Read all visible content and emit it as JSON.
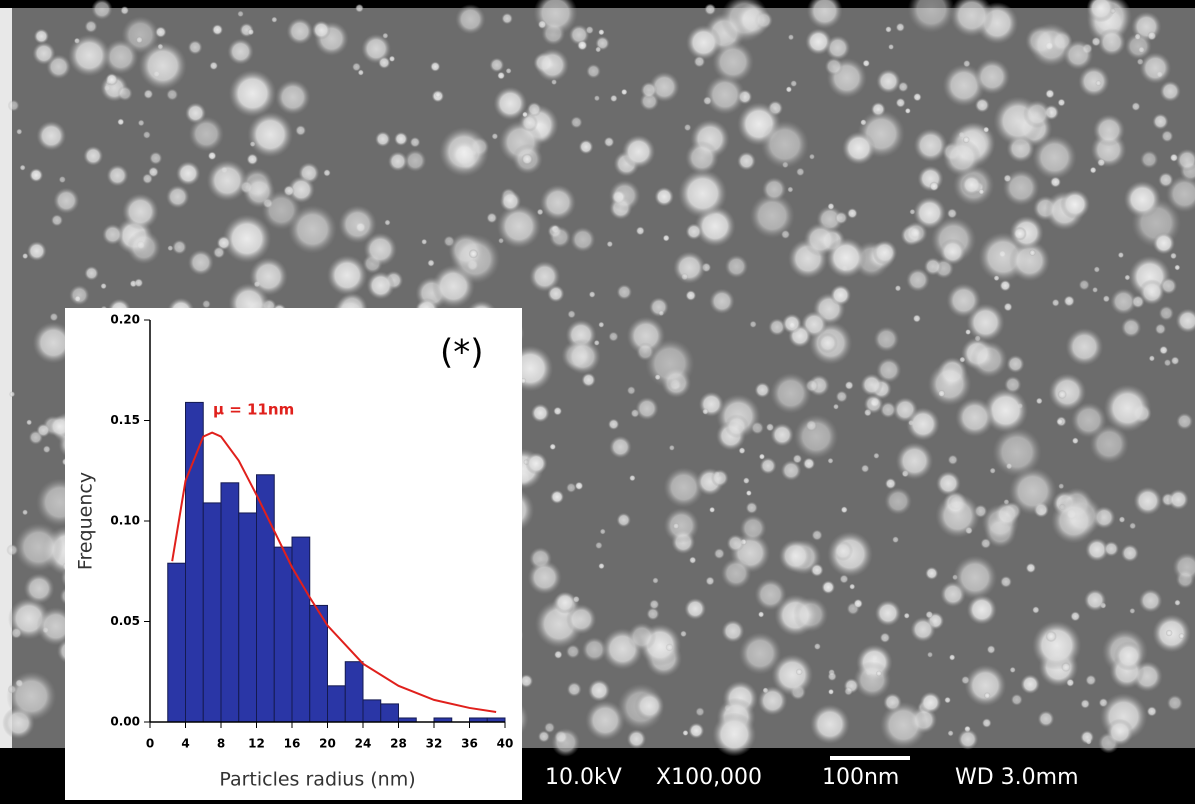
{
  "chart_data": {
    "type": "histogram",
    "bins": [
      2,
      4,
      6,
      8,
      10,
      12,
      14,
      16,
      18,
      20,
      22,
      24,
      26,
      28,
      30,
      32,
      34,
      36,
      38,
      40
    ],
    "values": [
      0.079,
      0.159,
      0.109,
      0.119,
      0.104,
      0.123,
      0.087,
      0.092,
      0.058,
      0.018,
      0.03,
      0.011,
      0.009,
      0.002,
      0.0,
      0.002,
      0.0,
      0.002,
      0.002
    ],
    "color": "#2a36a6",
    "curve": {
      "color": "#e0201c",
      "x": [
        2.5,
        4,
        6,
        7,
        8,
        10,
        12,
        14,
        16,
        18,
        20,
        24,
        28,
        32,
        36,
        39
      ],
      "values": [
        0.08,
        0.12,
        0.142,
        0.144,
        0.142,
        0.13,
        0.113,
        0.095,
        0.077,
        0.062,
        0.048,
        0.029,
        0.018,
        0.011,
        0.007,
        0.005
      ]
    },
    "xlabel": "Particles radius (nm)",
    "ylabel": "Frequency",
    "annotation": "μ = 11nm",
    "panel_label": "(*)",
    "xlim": [
      0,
      40
    ],
    "xticks": [
      0,
      4,
      8,
      12,
      16,
      20,
      24,
      28,
      32,
      36,
      40
    ],
    "ylim": [
      0,
      0.2
    ],
    "yticks": [
      {
        "value": 0,
        "label": "0.00"
      },
      {
        "value": 0.05,
        "label": "0.05"
      },
      {
        "value": 0.1,
        "label": "0.10"
      },
      {
        "value": 0.15,
        "label": "0.15"
      },
      {
        "value": 0.2,
        "label": "0.20"
      }
    ]
  },
  "sem_info": {
    "voltage": "10.0kV",
    "magnification": "X100,000",
    "scale_bar": "100nm",
    "working_distance": "WD 3.0mm"
  }
}
